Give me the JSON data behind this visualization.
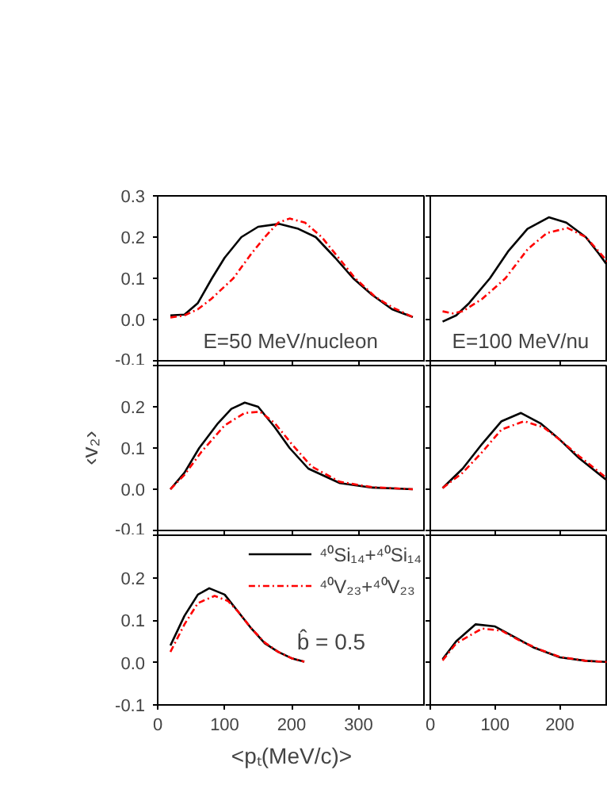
{
  "chart_data": [
    {
      "type": "line",
      "xlim": [
        0,
        400
      ],
      "xticks": [
        0,
        100,
        200,
        300
      ],
      "ylim": [
        -0.1,
        0.3
      ],
      "yticks": [
        {
          "value": -0.1,
          "label": "-0.1"
        },
        {
          "value": 0,
          "label": "0.0"
        },
        {
          "value": 0.1,
          "label": "0.1"
        },
        {
          "value": 0.2,
          "label": "0.2"
        },
        {
          "value": 0.3,
          "label": "0.3"
        }
      ],
      "tick_labels": "y",
      "grid": false,
      "legend": false,
      "annotations": [
        "E=50 MeV/nucleon"
      ],
      "series": [
        {
          "color": "#000000",
          "line_style": "solid",
          "x": [
            19,
            40,
            60,
            81,
            100,
            125,
            150,
            181,
            210,
            236,
            265,
            292,
            320,
            350,
            381
          ],
          "values": [
            0.01,
            0.012,
            0.04,
            0.1,
            0.15,
            0.2,
            0.225,
            0.232,
            0.22,
            0.2,
            0.15,
            0.1,
            0.06,
            0.025,
            0.006
          ]
        },
        {
          "color": "#ff0000",
          "line_style": "dashdot",
          "x": [
            19,
            40,
            60,
            80,
            113,
            140,
            160,
            180,
            197,
            220,
            245,
            270,
            295,
            325,
            350,
            381
          ],
          "values": [
            0.005,
            0.01,
            0.025,
            0.05,
            0.1,
            0.16,
            0.2,
            0.235,
            0.245,
            0.235,
            0.2,
            0.15,
            0.1,
            0.055,
            0.03,
            0.006
          ]
        }
      ]
    },
    {
      "type": "line",
      "xlim": [
        0,
        274
      ],
      "xticks": [
        0,
        100,
        200
      ],
      "ylim": [
        -0.1,
        0.3
      ],
      "yticks": [
        -0.1,
        0,
        0.1,
        0.2,
        0.3
      ],
      "tick_labels": false,
      "grid": false,
      "legend": false,
      "annotations": [
        "E=100 MeV/nu"
      ],
      "series": [
        {
          "color": "#000000",
          "line_style": "solid",
          "x": [
            19,
            40,
            60,
            92,
            120,
            150,
            183,
            210,
            240,
            260,
            274
          ],
          "values": [
            -0.005,
            0.01,
            0.04,
            0.1,
            0.165,
            0.22,
            0.248,
            0.235,
            0.2,
            0.16,
            0.13
          ]
        },
        {
          "color": "#ff0000",
          "line_style": "dashdot",
          "x": [
            19,
            35,
            50,
            80,
            116,
            150,
            180,
            212,
            240,
            260,
            274
          ],
          "values": [
            0.02,
            0.015,
            0.02,
            0.05,
            0.1,
            0.17,
            0.21,
            0.222,
            0.2,
            0.165,
            0.14
          ]
        }
      ]
    },
    {
      "type": "line",
      "ylabel": "‹v₂›",
      "xlim": [
        0,
        400
      ],
      "xticks": [
        0,
        100,
        200,
        300
      ],
      "ylim": [
        -0.1,
        0.3
      ],
      "yticks": [
        {
          "value": -0.1,
          "label": "-0.1"
        },
        {
          "value": 0,
          "label": "0.0"
        },
        {
          "value": 0.1,
          "label": "0.1"
        },
        {
          "value": 0.2,
          "label": "0.2"
        },
        {
          "value": 0.3,
          "label": null
        }
      ],
      "tick_labels": "y",
      "grid": false,
      "legend": false,
      "series": [
        {
          "color": "#000000",
          "line_style": "solid",
          "x": [
            19,
            40,
            62,
            90,
            110,
            130,
            150,
            175,
            197,
            225,
            272,
            320,
            381
          ],
          "values": [
            0,
            0.04,
            0.1,
            0.16,
            0.195,
            0.21,
            0.2,
            0.15,
            0.1,
            0.05,
            0.015,
            0.004,
            0
          ]
        },
        {
          "color": "#ff0000",
          "line_style": "dashdot",
          "x": [
            19,
            40,
            65,
            100,
            130,
            153,
            175,
            200,
            230,
            272,
            320,
            381
          ],
          "values": [
            0,
            0.035,
            0.09,
            0.155,
            0.185,
            0.188,
            0.16,
            0.11,
            0.055,
            0.018,
            0.005,
            0
          ]
        }
      ]
    },
    {
      "type": "line",
      "xlim": [
        0,
        274
      ],
      "xticks": [
        0,
        100,
        200
      ],
      "ylim": [
        -0.1,
        0.3
      ],
      "yticks": [
        -0.1,
        0,
        0.1,
        0.2,
        0.3
      ],
      "tick_labels": false,
      "grid": false,
      "legend": false,
      "series": [
        {
          "color": "#000000",
          "line_style": "solid",
          "x": [
            19,
            50,
            80,
            110,
            140,
            170,
            200,
            230,
            274
          ],
          "values": [
            0.003,
            0.05,
            0.11,
            0.165,
            0.185,
            0.16,
            0.12,
            0.075,
            0.02
          ]
        },
        {
          "color": "#ff0000",
          "line_style": "dashdot",
          "x": [
            19,
            50,
            80,
            110,
            145,
            175,
            200,
            230,
            274
          ],
          "values": [
            0.003,
            0.04,
            0.09,
            0.145,
            0.165,
            0.15,
            0.12,
            0.08,
            0.025
          ]
        }
      ]
    },
    {
      "type": "line",
      "xlabel": "<pₜ(MeV/c)>",
      "xlim": [
        0,
        400
      ],
      "xticks": [
        0,
        100,
        200,
        300
      ],
      "ylim": [
        -0.1,
        0.3
      ],
      "yticks": [
        {
          "value": -0.1,
          "label": "-0.1"
        },
        {
          "value": 0,
          "label": "0.0"
        },
        {
          "value": 0.1,
          "label": "0.1"
        },
        {
          "value": 0.2,
          "label": "0.2"
        },
        {
          "value": 0.3,
          "label": null
        }
      ],
      "grid": false,
      "legend": "top right",
      "annotations": [
        "b̂ = 0.5"
      ],
      "series": [
        {
          "name": "⁴⁰Si₁₄+⁴⁰Si₁₄",
          "color": "#000000",
          "line_style": "solid",
          "x": [
            19,
            40,
            60,
            77,
            100,
            120,
            140,
            160,
            180,
            200,
            219
          ],
          "values": [
            0.04,
            0.11,
            0.16,
            0.175,
            0.16,
            0.12,
            0.08,
            0.045,
            0.025,
            0.01,
            0.002
          ]
        },
        {
          "name": "⁴⁰V₂₃+⁴⁰V₂₃",
          "color": "#ff0000",
          "line_style": "dashdot",
          "x": [
            19,
            40,
            60,
            85,
            105,
            120,
            140,
            160,
            180,
            200,
            219
          ],
          "values": [
            0.025,
            0.09,
            0.14,
            0.157,
            0.145,
            0.12,
            0.08,
            0.047,
            0.025,
            0.01,
            0.002
          ]
        }
      ]
    },
    {
      "type": "line",
      "xlim": [
        0,
        274
      ],
      "xticks": [
        0,
        100,
        200
      ],
      "ylim": [
        -0.1,
        0.3
      ],
      "yticks": [
        -0.1,
        0,
        0.1,
        0.2,
        0.3
      ],
      "tick_labels": "x",
      "grid": false,
      "legend": false,
      "series": [
        {
          "color": "#000000",
          "line_style": "solid",
          "x": [
            19,
            40,
            70,
            100,
            130,
            160,
            200,
            240,
            274
          ],
          "values": [
            0.008,
            0.05,
            0.09,
            0.085,
            0.06,
            0.035,
            0.012,
            0.004,
            0.001
          ]
        },
        {
          "color": "#ff0000",
          "line_style": "dashdot",
          "x": [
            19,
            40,
            80,
            110,
            140,
            170,
            200,
            240,
            274
          ],
          "values": [
            0.005,
            0.045,
            0.08,
            0.075,
            0.05,
            0.03,
            0.013,
            0.004,
            0.001
          ]
        }
      ]
    }
  ]
}
